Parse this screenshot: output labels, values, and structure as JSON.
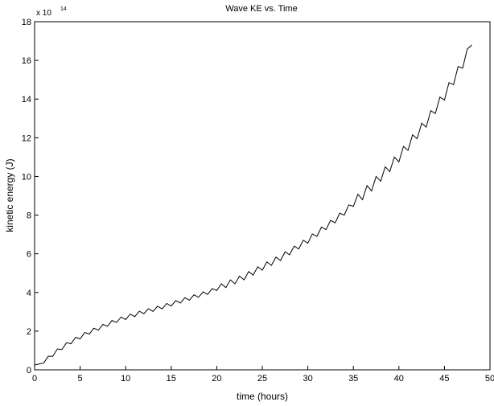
{
  "chart_data": {
    "type": "line",
    "title": "Wave KE vs. Time",
    "x_label": "time (hours)",
    "y_label": "kinetic energy (J)",
    "y_multiplier": {
      "base": "x 10",
      "exponent": "14"
    },
    "x": [
      0,
      0.5,
      1,
      1.5,
      2,
      2.5,
      3,
      3.5,
      4,
      4.5,
      5,
      5.5,
      6,
      6.5,
      7,
      7.5,
      8,
      8.5,
      9,
      9.5,
      10,
      10.5,
      11,
      11.5,
      12,
      12.5,
      13,
      13.5,
      14,
      14.5,
      15,
      15.5,
      16,
      16.5,
      17,
      17.5,
      18,
      18.5,
      19,
      19.5,
      20,
      20.5,
      21,
      21.5,
      22,
      22.5,
      23,
      23.5,
      24,
      24.5,
      25,
      25.5,
      26,
      26.5,
      27,
      27.5,
      28,
      28.5,
      29,
      29.5,
      30,
      30.5,
      31,
      31.5,
      32,
      32.5,
      33,
      33.5,
      34,
      34.5,
      35,
      35.5,
      36,
      36.5,
      37,
      37.5,
      38,
      38.5,
      39,
      39.5,
      40,
      40.5,
      41,
      41.5,
      42,
      42.5,
      43,
      43.5,
      44,
      44.5,
      45,
      45.5,
      46,
      46.5,
      47,
      47.5,
      48
    ],
    "series": [
      {
        "color": "#000000",
        "values": [
          0.25,
          0.3,
          0.35,
          0.7,
          0.7,
          1.08,
          1.05,
          1.4,
          1.35,
          1.68,
          1.6,
          1.93,
          1.85,
          2.15,
          2.05,
          2.35,
          2.25,
          2.55,
          2.45,
          2.73,
          2.6,
          2.88,
          2.75,
          3.03,
          2.9,
          3.16,
          3.02,
          3.29,
          3.15,
          3.43,
          3.3,
          3.58,
          3.45,
          3.73,
          3.6,
          3.88,
          3.75,
          4.03,
          3.9,
          4.2,
          4.1,
          4.45,
          4.25,
          4.65,
          4.45,
          4.85,
          4.65,
          5.08,
          4.9,
          5.33,
          5.15,
          5.58,
          5.4,
          5.83,
          5.65,
          6.1,
          5.95,
          6.4,
          6.25,
          6.7,
          6.55,
          7.03,
          6.9,
          7.38,
          7.25,
          7.73,
          7.6,
          8.1,
          8.0,
          8.53,
          8.45,
          9.08,
          8.8,
          9.53,
          9.25,
          10.0,
          9.75,
          10.5,
          10.25,
          11.0,
          10.75,
          11.55,
          11.35,
          12.15,
          11.95,
          12.75,
          12.55,
          13.4,
          13.25,
          14.1,
          13.95,
          14.85,
          14.75,
          15.68,
          15.6,
          16.58,
          16.8
        ]
      }
    ],
    "xlim": [
      0,
      50
    ],
    "xticks": [
      0,
      5,
      10,
      15,
      20,
      25,
      30,
      35,
      40,
      45,
      50
    ],
    "ylim": [
      0,
      18
    ],
    "yticks": [
      0,
      2,
      4,
      6,
      8,
      10,
      12,
      14,
      16,
      18
    ]
  }
}
